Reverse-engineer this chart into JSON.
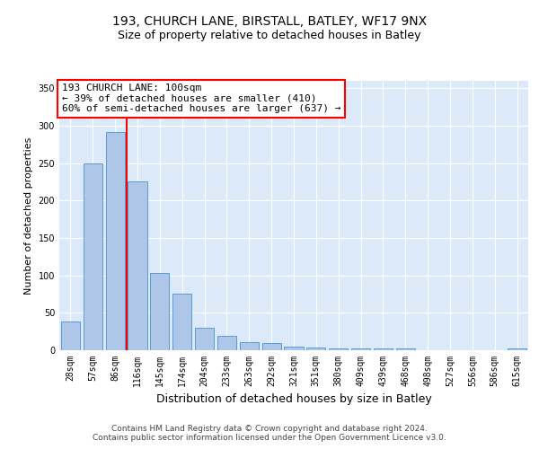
{
  "title1": "193, CHURCH LANE, BIRSTALL, BATLEY, WF17 9NX",
  "title2": "Size of property relative to detached houses in Batley",
  "xlabel": "Distribution of detached houses by size in Batley",
  "ylabel": "Number of detached properties",
  "footer1": "Contains HM Land Registry data © Crown copyright and database right 2024.",
  "footer2": "Contains public sector information licensed under the Open Government Licence v3.0.",
  "bar_labels": [
    "28sqm",
    "57sqm",
    "86sqm",
    "116sqm",
    "145sqm",
    "174sqm",
    "204sqm",
    "233sqm",
    "263sqm",
    "292sqm",
    "321sqm",
    "351sqm",
    "380sqm",
    "409sqm",
    "439sqm",
    "468sqm",
    "498sqm",
    "527sqm",
    "556sqm",
    "586sqm",
    "615sqm"
  ],
  "bar_values": [
    38,
    250,
    292,
    226,
    103,
    76,
    30,
    19,
    11,
    10,
    5,
    4,
    3,
    2,
    2,
    2,
    0,
    0,
    0,
    0,
    2
  ],
  "bar_color": "#aec6e8",
  "bar_edgecolor": "#5b9bd5",
  "vline_x": 2.5,
  "vline_color": "red",
  "annotation_text": "193 CHURCH LANE: 100sqm\n← 39% of detached houses are smaller (410)\n60% of semi-detached houses are larger (637) →",
  "annotation_box_color": "white",
  "annotation_box_edgecolor": "red",
  "bg_color": "#dce9f8",
  "ylim": [
    0,
    360
  ],
  "xlim": [
    -0.5,
    20.5
  ],
  "title1_fontsize": 10,
  "title2_fontsize": 9,
  "ylabel_fontsize": 8,
  "xlabel_fontsize": 9,
  "tick_fontsize": 7,
  "ann_fontsize": 8,
  "footer_fontsize": 6.5
}
